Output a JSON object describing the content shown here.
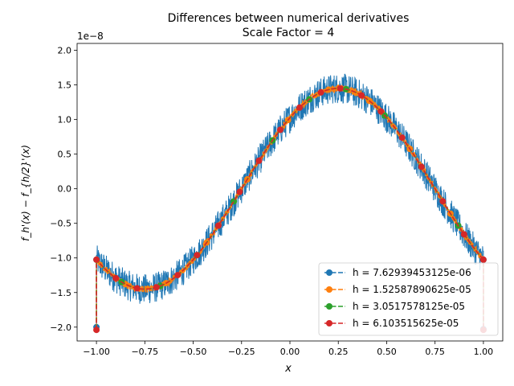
{
  "chart_data": {
    "type": "line",
    "title": "Differences between numerical derivatives",
    "subtitle": "Scale Factor = 4",
    "xlabel": "x",
    "ylabel": "f_h'(x) − f_{h/2}'(x)",
    "y_multiplier": "1e−8",
    "xlim": [
      -1.1,
      1.1
    ],
    "ylim": [
      -2.2,
      2.1
    ],
    "x_ticks": [
      -1.0,
      -0.75,
      -0.5,
      -0.25,
      0.0,
      0.25,
      0.5,
      0.75,
      1.0
    ],
    "x_tick_labels": [
      "−1.00",
      "−0.75",
      "−0.50",
      "−0.25",
      "0.00",
      "0.25",
      "0.50",
      "0.75",
      "1.00"
    ],
    "y_ticks": [
      -2.0,
      -1.5,
      -1.0,
      -0.5,
      0.0,
      0.5,
      1.0,
      1.5,
      2.0
    ],
    "y_tick_labels": [
      "−2.0",
      "−1.5",
      "−1.0",
      "−0.5",
      "0.0",
      "0.5",
      "1.0",
      "1.5",
      "2.0"
    ],
    "grid": false,
    "legend_position": "bottom-right",
    "curve": {
      "amplitude": 1.45,
      "period": 2.0,
      "phase": 0.25
    },
    "series": [
      {
        "name": "h = 7.62939453125e-06",
        "color": "#1f77b4",
        "noise": 0.22,
        "markers_x": [
          -1.0,
          1.0
        ],
        "end_y": [
          -2.0,
          -2.03
        ]
      },
      {
        "name": "h = 1.52587890625e-05",
        "color": "#ff7f0e",
        "noise": 0.05,
        "markers_x": [
          -0.85,
          -0.64,
          -0.43,
          -0.22,
          -0.01,
          0.2,
          0.41,
          0.62,
          0.83
        ],
        "end_y": [
          -2.02,
          -2.03
        ]
      },
      {
        "name": "h = 3.0517578125e-05",
        "color": "#2ca02c",
        "noise": 0.0,
        "markers_x": [
          -0.87,
          -0.67,
          -0.48,
          -0.29,
          -0.09,
          0.1,
          0.29,
          0.49,
          0.68,
          0.87
        ],
        "end_y": [
          -2.03,
          -2.04
        ]
      },
      {
        "name": "h = 6.103515625e-05",
        "color": "#d62728",
        "noise": 0.0,
        "markers_x": [
          -1.0,
          -0.9,
          -0.79,
          -0.69,
          -0.58,
          -0.48,
          -0.37,
          -0.26,
          -0.16,
          -0.05,
          0.05,
          0.16,
          0.26,
          0.37,
          0.47,
          0.58,
          0.68,
          0.79,
          0.9,
          1.0
        ],
        "end_y": [
          -2.04,
          -2.04
        ]
      }
    ]
  }
}
